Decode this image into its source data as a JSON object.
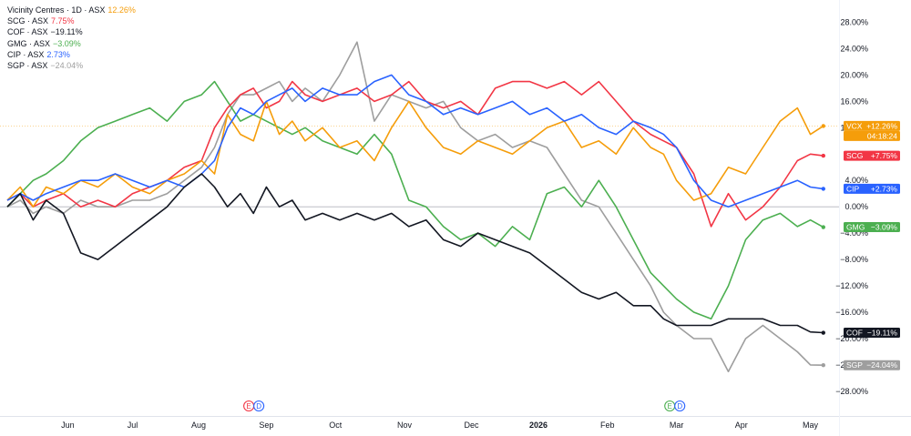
{
  "legend": [
    {
      "symbol": "Vicinity Centres · 1D · ASX",
      "change": "12.26%",
      "color": "#f59d0a"
    },
    {
      "symbol": "SCG · ASX",
      "change": "7.75%",
      "color": "#f23645"
    },
    {
      "symbol": "COF · ASX",
      "change": "−19.11%",
      "color": "#131722"
    },
    {
      "symbol": "GMG · ASX",
      "change": "−3.09%",
      "color": "#4caf50"
    },
    {
      "symbol": "CIP · ASX",
      "change": "2.73%",
      "color": "#2962ff"
    },
    {
      "symbol": "SGP · ASX",
      "change": "−24.04%",
      "color": "#9e9e9e"
    }
  ],
  "chart_data": {
    "type": "line",
    "x_ticks": [
      "Jun",
      "Jul",
      "Aug",
      "Sep",
      "Oct",
      "Nov",
      "Dec",
      "2026",
      "Feb",
      "Mar",
      "Apr",
      "May"
    ],
    "x_tick_pos": [
      2.5,
      4,
      5.53,
      7.1,
      8.7,
      10.3,
      11.85,
      13.4,
      15,
      16.6,
      18.1,
      19.7
    ],
    "y_ticks": [
      "28.00%",
      "24.00%",
      "20.00%",
      "16.00%",
      "12.00%",
      "8.00%",
      "4.00%",
      "0.00%",
      "−4.00%",
      "−8.00%",
      "−12.00%",
      "−16.00%",
      "−20.00%",
      "−24.00%",
      "−28.00%"
    ],
    "y_tick_values": [
      28,
      24,
      20,
      16,
      12,
      8,
      4,
      0,
      -4,
      -8,
      -12,
      -16,
      -20,
      -24,
      -28
    ],
    "ylim": [
      -30.5,
      30
    ],
    "xlim": [
      1.1,
      20.3
    ],
    "reference_line": 12.26,
    "series": [
      {
        "name": "VCX",
        "label": "VCX",
        "value": "+12.26%",
        "extra": "04:18:24",
        "color": "#f59d0a",
        "last": 12.26,
        "x": [
          1.1,
          1.4,
          1.7,
          2,
          2.4,
          2.8,
          3.2,
          3.6,
          4,
          4.4,
          4.8,
          5.2,
          5.6,
          5.9,
          6.2,
          6.5,
          6.8,
          7.1,
          7.4,
          7.7,
          8,
          8.4,
          8.8,
          9.2,
          9.6,
          10,
          10.4,
          10.8,
          11.2,
          11.6,
          12,
          12.4,
          12.8,
          13.2,
          13.6,
          14,
          14.4,
          14.8,
          15.2,
          15.6,
          16,
          16.3,
          16.6,
          17,
          17.4,
          17.8,
          18.2,
          18.6,
          19,
          19.4,
          19.7,
          20
        ],
        "y": [
          1,
          3,
          0,
          3,
          2,
          4,
          3,
          5,
          3,
          2,
          4,
          5,
          7,
          5,
          14,
          11,
          10,
          16,
          11,
          13,
          10,
          12,
          9,
          10,
          7,
          12,
          16,
          12,
          9,
          8,
          10,
          9,
          8,
          10,
          12,
          13,
          9,
          10,
          8,
          12,
          9,
          8,
          4,
          1,
          2,
          6,
          5,
          9,
          13,
          15,
          11,
          12.26
        ]
      },
      {
        "name": "SCG",
        "label": "SCG",
        "value": "+7.75%",
        "extra": "",
        "color": "#f23645",
        "last": 7.75,
        "x": [
          1.1,
          1.4,
          1.7,
          2,
          2.4,
          2.8,
          3.2,
          3.6,
          4,
          4.4,
          4.8,
          5.2,
          5.6,
          5.9,
          6.2,
          6.5,
          6.8,
          7.1,
          7.4,
          7.7,
          8,
          8.4,
          8.8,
          9.2,
          9.6,
          10,
          10.4,
          10.8,
          11.2,
          11.6,
          12,
          12.4,
          12.8,
          13.2,
          13.6,
          14,
          14.4,
          14.8,
          15.2,
          15.6,
          16,
          16.3,
          16.6,
          17,
          17.4,
          17.8,
          18.2,
          18.6,
          19,
          19.4,
          19.7,
          20
        ],
        "y": [
          1,
          2,
          0,
          1,
          2,
          0,
          1,
          0,
          2,
          3,
          4,
          6,
          7,
          12,
          15,
          17,
          18,
          15,
          16,
          19,
          17,
          16,
          17,
          18,
          16,
          17,
          19,
          16,
          15,
          16,
          14,
          18,
          19,
          19,
          18,
          19,
          17,
          19,
          16,
          13,
          11,
          10,
          9,
          5,
          -3,
          2,
          -2,
          0,
          3,
          7,
          8,
          7.75
        ]
      },
      {
        "name": "COF",
        "label": "COF",
        "value": "−19.11%",
        "extra": "",
        "color": "#131722",
        "last": -19.11,
        "x": [
          1.1,
          1.4,
          1.7,
          2,
          2.4,
          2.8,
          3.2,
          3.6,
          4,
          4.4,
          4.8,
          5.2,
          5.6,
          5.9,
          6.2,
          6.5,
          6.8,
          7.1,
          7.4,
          7.7,
          8,
          8.4,
          8.8,
          9.2,
          9.6,
          10,
          10.4,
          10.8,
          11.2,
          11.6,
          12,
          12.4,
          12.8,
          13.2,
          13.6,
          14,
          14.4,
          14.8,
          15.2,
          15.6,
          16,
          16.3,
          16.6,
          17,
          17.4,
          17.8,
          18.2,
          18.6,
          19,
          19.4,
          19.7,
          20
        ],
        "y": [
          0,
          2,
          -2,
          1,
          -1,
          -7,
          -8,
          -6,
          -4,
          -2,
          0,
          3,
          5,
          3,
          0,
          2,
          -1,
          3,
          0,
          1,
          -2,
          -1,
          -2,
          -1,
          -2,
          -1,
          -3,
          -2,
          -5,
          -6,
          -4,
          -5,
          -6,
          -7,
          -9,
          -11,
          -13,
          -14,
          -13,
          -15,
          -15,
          -17,
          -18,
          -18,
          -18,
          -17,
          -17,
          -17,
          -18,
          -18,
          -19,
          -19.11
        ]
      },
      {
        "name": "GMG",
        "label": "GMG",
        "value": "−3.09%",
        "extra": "",
        "color": "#4caf50",
        "last": -3.09,
        "x": [
          1.1,
          1.4,
          1.7,
          2,
          2.4,
          2.8,
          3.2,
          3.6,
          4,
          4.4,
          4.8,
          5.2,
          5.6,
          5.9,
          6.2,
          6.5,
          6.8,
          7.1,
          7.4,
          7.7,
          8,
          8.4,
          8.8,
          9.2,
          9.6,
          10,
          10.4,
          10.8,
          11.2,
          11.6,
          12,
          12.4,
          12.8,
          13.2,
          13.6,
          14,
          14.4,
          14.8,
          15.2,
          15.6,
          16,
          16.3,
          16.6,
          17,
          17.4,
          17.8,
          18.2,
          18.6,
          19,
          19.4,
          19.7,
          20
        ],
        "y": [
          0,
          2,
          4,
          5,
          7,
          10,
          12,
          13,
          14,
          15,
          13,
          16,
          17,
          19,
          16,
          13,
          14,
          13,
          12,
          11,
          12,
          10,
          9,
          8,
          11,
          8,
          1,
          0,
          -3,
          -5,
          -4,
          -6,
          -3,
          -5,
          2,
          3,
          0,
          4,
          0,
          -5,
          -10,
          -12,
          -14,
          -16,
          -17,
          -12,
          -5,
          -2,
          -1,
          -3,
          -2,
          -3.09
        ]
      },
      {
        "name": "CIP",
        "label": "CIP",
        "value": "+2.73%",
        "extra": "",
        "color": "#2962ff",
        "last": 2.73,
        "x": [
          1.1,
          1.4,
          1.7,
          2,
          2.4,
          2.8,
          3.2,
          3.6,
          4,
          4.4,
          4.8,
          5.2,
          5.6,
          5.9,
          6.2,
          6.5,
          6.8,
          7.1,
          7.4,
          7.7,
          8,
          8.4,
          8.8,
          9.2,
          9.6,
          10,
          10.4,
          10.8,
          11.2,
          11.6,
          12,
          12.4,
          12.8,
          13.2,
          13.6,
          14,
          14.4,
          14.8,
          15.2,
          15.6,
          16,
          16.3,
          16.6,
          17,
          17.4,
          17.8,
          18.2,
          18.6,
          19,
          19.4,
          19.7,
          20
        ],
        "y": [
          1,
          2,
          1,
          2,
          3,
          4,
          4,
          5,
          4,
          3,
          4,
          3,
          5,
          7,
          12,
          15,
          14,
          16,
          17,
          18,
          16,
          18,
          17,
          17,
          19,
          20,
          17,
          16,
          14,
          15,
          14,
          15,
          16,
          14,
          15,
          13,
          14,
          12,
          11,
          13,
          12,
          11,
          9,
          4,
          1,
          0,
          1,
          2,
          3,
          4,
          3,
          2.73
        ]
      },
      {
        "name": "SGP",
        "label": "SGP",
        "value": "−24.04%",
        "extra": "",
        "color": "#9e9e9e",
        "last": -24.04,
        "x": [
          1.1,
          1.4,
          1.7,
          2,
          2.4,
          2.8,
          3.2,
          3.6,
          4,
          4.4,
          4.8,
          5.2,
          5.6,
          5.9,
          6.2,
          6.5,
          6.8,
          7.1,
          7.4,
          7.7,
          8,
          8.4,
          8.8,
          9.2,
          9.6,
          10,
          10.4,
          10.8,
          11.2,
          11.6,
          12,
          12.4,
          12.8,
          13.2,
          13.6,
          14,
          14.4,
          14.8,
          15.2,
          15.6,
          16,
          16.3,
          16.6,
          17,
          17.4,
          17.8,
          18.2,
          18.6,
          19,
          19.4,
          19.7,
          20
        ],
        "y": [
          0,
          1,
          -1,
          0,
          -1,
          1,
          0,
          0,
          1,
          1,
          2,
          4,
          6,
          9,
          14,
          17,
          17,
          18,
          19,
          16,
          18,
          16,
          20,
          25,
          13,
          17,
          16,
          15,
          16,
          12,
          10,
          11,
          9,
          10,
          9,
          5,
          1,
          0,
          -4,
          -8,
          -12,
          -16,
          -18,
          -20,
          -20,
          -25,
          -20,
          -18,
          -20,
          -22,
          -24,
          -24.04
        ]
      }
    ],
    "events": [
      {
        "x": 6.82,
        "labels": [
          "E",
          "D"
        ],
        "colors": [
          "#f23645",
          "#2962ff"
        ]
      },
      {
        "x": 16.57,
        "labels": [
          "E",
          "D"
        ],
        "colors": [
          "#4caf50",
          "#2962ff"
        ]
      }
    ]
  }
}
